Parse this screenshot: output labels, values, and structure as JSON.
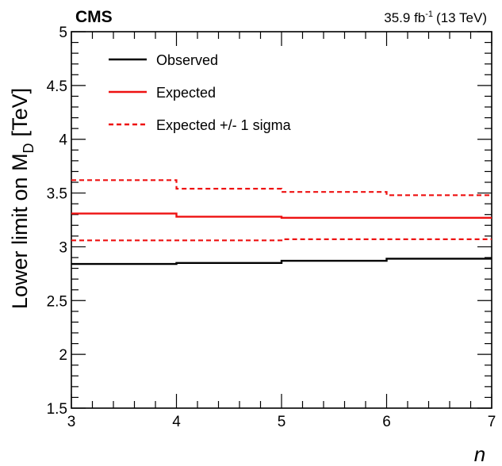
{
  "chart_data": {
    "type": "line",
    "step": true,
    "header": {
      "experiment": "CMS",
      "lumi": "35.9 fb",
      "lumi_exp": "-1",
      "energy": "(13 TeV)"
    },
    "xlabel": "n",
    "ylabel": "Lower limit on M",
    "ylabel_sub": "D",
    "ylabel_unit": "[TeV]",
    "xlim": [
      3,
      7
    ],
    "ylim": [
      1.5,
      5
    ],
    "xticks": [
      3,
      4,
      5,
      6,
      7
    ],
    "yticks": [
      1.5,
      2,
      2.5,
      3,
      3.5,
      4,
      4.5,
      5
    ],
    "grid": false,
    "legend_position": "top-left",
    "series": [
      {
        "name": "Observed",
        "color": "#000000",
        "style": "solid",
        "x": [
          3,
          4,
          5,
          6,
          7
        ],
        "y": [
          2.84,
          2.85,
          2.87,
          2.89,
          2.89
        ]
      },
      {
        "name": "Expected",
        "color": "#ee1111",
        "style": "solid",
        "x": [
          3,
          4,
          5,
          6,
          7
        ],
        "y": [
          3.31,
          3.28,
          3.27,
          3.27,
          3.27
        ]
      },
      {
        "name": "Expected +/- 1 sigma",
        "color": "#ee1111",
        "style": "dashed",
        "x": [
          3,
          4,
          5,
          6,
          7
        ],
        "y": [
          3.62,
          3.54,
          3.51,
          3.48,
          3.48
        ]
      },
      {
        "name": "",
        "color": "#ee1111",
        "style": "dashed",
        "x": [
          3,
          4,
          5,
          6,
          7
        ],
        "y": [
          3.06,
          3.06,
          3.07,
          3.07,
          3.07
        ]
      }
    ]
  }
}
